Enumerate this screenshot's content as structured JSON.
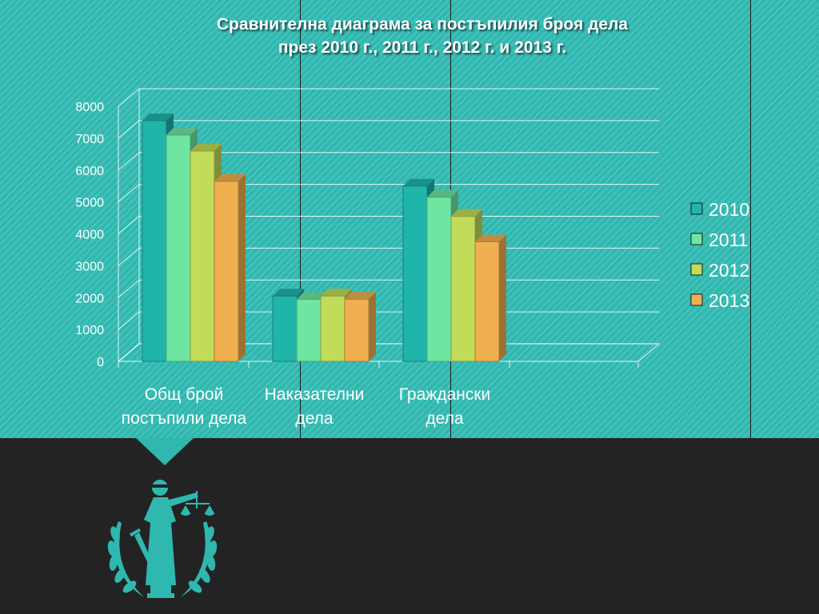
{
  "slide": {
    "title_line1": "Сравнителна диаграма за постъпилия броя дела",
    "title_line2": "през 2010 г., 2011 г., 2012 г. и 2013 г.",
    "emblem_icon": "lady-justice-icon"
  },
  "chart_data": {
    "type": "bar",
    "style": "3d-clustered-column",
    "title": "Сравнителна диаграма за постъпилия броя дела през 2010 г., 2011 г., 2012 г. и 2013 г.",
    "categories": [
      [
        "Общ брой",
        "постъпили дела"
      ],
      [
        "Наказателни",
        "дела"
      ],
      [
        "Граждански",
        "дела"
      ]
    ],
    "series": [
      {
        "name": "2010",
        "color": "#1fb5ab",
        "values": [
          7550,
          2050,
          5500
        ]
      },
      {
        "name": "2011",
        "color": "#6ee6a2",
        "values": [
          7100,
          1950,
          5150
        ]
      },
      {
        "name": "2012",
        "color": "#c0dc59",
        "values": [
          6600,
          2050,
          4550
        ]
      },
      {
        "name": "2013",
        "color": "#f0b050",
        "values": [
          5650,
          1950,
          3750
        ]
      }
    ],
    "ylim": [
      0,
      8000
    ],
    "yticks": [
      0,
      1000,
      2000,
      3000,
      4000,
      5000,
      6000,
      7000,
      8000
    ],
    "grid": true,
    "legend_position": "right"
  }
}
